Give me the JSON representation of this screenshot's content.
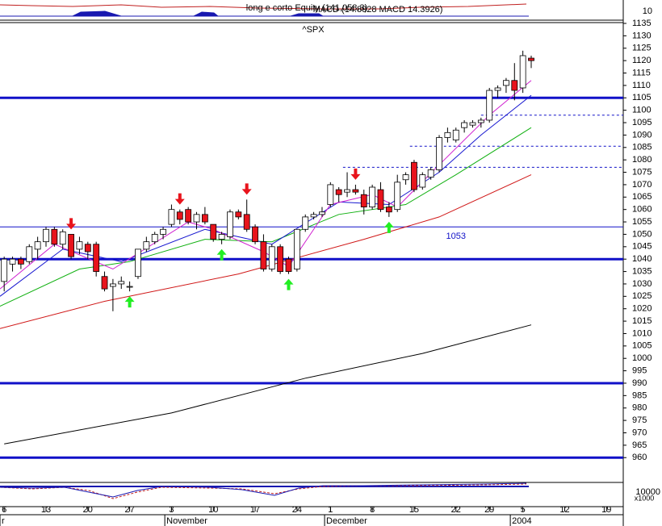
{
  "chart_data": {
    "type": "candlestick",
    "title": "^SPX",
    "upper_panel": {
      "title": "long e corto Equity (141,058.3)",
      "tick": "10"
    },
    "lower_panel": {
      "title": "MACD (14.8928  MACD 14.3926)",
      "tick": "10000",
      "unit": "x1000"
    },
    "x": [
      0,
      1,
      2,
      3,
      4,
      5,
      6,
      7,
      8,
      9,
      10,
      11,
      12,
      13,
      14,
      15,
      16,
      17,
      18,
      19,
      20,
      21,
      22,
      23,
      24,
      25,
      26,
      27,
      28,
      29,
      30,
      31,
      32,
      33,
      34,
      35,
      36,
      37,
      38,
      39,
      40,
      41,
      42,
      43,
      44,
      45,
      46,
      47,
      48,
      49,
      50,
      51,
      52,
      53,
      54,
      55,
      56,
      57,
      58,
      59,
      60,
      61,
      62,
      63
    ],
    "open": [
      1031,
      1038,
      1040,
      1039,
      1044,
      1047,
      1052,
      1046,
      1050,
      1044,
      1046,
      1046,
      1033,
      1029,
      1030,
      1029,
      1033,
      1044,
      1047,
      1050,
      1054,
      1059,
      1060,
      1055,
      1058,
      1054,
      1048,
      1049,
      1059,
      1058,
      1053,
      1047,
      1036,
      1045,
      1040,
      1036,
      1052,
      1057,
      1058,
      1062,
      1068,
      1067,
      1068,
      1066,
      1061,
      1068,
      1061,
      1060,
      1072,
      1079,
      1069,
      1073,
      1076,
      1089,
      1088,
      1093,
      1094,
      1095,
      1096,
      1108,
      1110,
      1112,
      1109,
      1121
    ],
    "high": [
      1041,
      1041,
      1041,
      1046,
      1049,
      1053,
      1053,
      1052,
      1050,
      1049,
      1047,
      1047,
      1035,
      1032,
      1033,
      1031,
      1044,
      1049,
      1051,
      1053,
      1062,
      1060,
      1061,
      1059,
      1061,
      1054,
      1051,
      1060,
      1060,
      1064,
      1054,
      1050,
      1046,
      1046,
      1041,
      1052,
      1058,
      1059,
      1061,
      1071,
      1069,
      1075,
      1070,
      1068,
      1070,
      1071,
      1063,
      1074,
      1075,
      1080,
      1075,
      1077,
      1090,
      1093,
      1093,
      1096,
      1096,
      1097,
      1109,
      1110,
      1113,
      1119,
      1124,
      1122
    ],
    "low": [
      1027,
      1035,
      1036,
      1038,
      1040,
      1045,
      1045,
      1044,
      1040,
      1042,
      1040,
      1033,
      1027,
      1019,
      1028,
      1027,
      1032,
      1043,
      1046,
      1048,
      1053,
      1054,
      1054,
      1052,
      1054,
      1047,
      1046,
      1048,
      1056,
      1051,
      1046,
      1035,
      1035,
      1034,
      1034,
      1035,
      1051,
      1056,
      1057,
      1061,
      1063,
      1065,
      1066,
      1058,
      1060,
      1059,
      1057,
      1059,
      1070,
      1067,
      1068,
      1072,
      1075,
      1087,
      1087,
      1091,
      1093,
      1093,
      1095,
      1105,
      1107,
      1104,
      1107,
      1117
    ],
    "close": [
      1040,
      1040,
      1038,
      1045,
      1047,
      1052,
      1046,
      1051,
      1041,
      1047,
      1043,
      1035,
      1028,
      1030,
      1031,
      1029,
      1044,
      1047,
      1050,
      1052,
      1060,
      1056,
      1055,
      1058,
      1055,
      1048,
      1050,
      1059,
      1057,
      1052,
      1047,
      1036,
      1045,
      1035,
      1035,
      1052,
      1057,
      1058,
      1059,
      1070,
      1066,
      1068,
      1067,
      1061,
      1069,
      1060,
      1059,
      1071,
      1074,
      1068,
      1074,
      1076,
      1089,
      1091,
      1092,
      1095,
      1095,
      1096,
      1108,
      1109,
      1112,
      1108,
      1122,
      1120
    ],
    "up_color": "#ffffff",
    "down_color": "#e8141c",
    "series": [
      {
        "color": "#000000",
        "x": [
          0,
          20,
          36,
          50,
          63
        ],
        "values": [
          965.5,
          978,
          992,
          1002,
          1013.5
        ]
      },
      {
        "color": "#d01818",
        "x": [
          -0.5,
          12,
          28,
          43,
          52,
          63
        ],
        "values": [
          1012,
          1023,
          1034,
          1048,
          1057,
          1074
        ]
      },
      {
        "color": "#10b010",
        "x": [
          -0.5,
          9,
          15,
          24,
          32,
          40,
          48,
          54,
          63
        ],
        "values": [
          1021,
          1036,
          1039,
          1048,
          1047,
          1058,
          1062,
          1074,
          1093
        ]
      },
      {
        "color": "#1818d0",
        "x": [
          -0.5,
          7,
          14,
          24,
          32,
          40,
          46,
          52,
          57,
          63
        ],
        "values": [
          1025,
          1044,
          1039,
          1052,
          1046,
          1063,
          1062,
          1075,
          1090,
          1106
        ]
      },
      {
        "color": "#d020d0",
        "x": [
          -0.5,
          6,
          13,
          22,
          25,
          31,
          34,
          39,
          44,
          47,
          52,
          58,
          63
        ],
        "values": [
          1028,
          1046,
          1036,
          1055,
          1052,
          1043,
          1037,
          1062,
          1066,
          1061,
          1078,
          1098,
          1112
        ]
      }
    ],
    "levels": [
      1105,
      1040,
      990,
      960
    ],
    "level_color": "#1010c8",
    "support": {
      "value": 1053,
      "label": "1053",
      "label_x": 54
    },
    "dashed_levels": [
      {
        "value": 1098,
        "start": 57
      },
      {
        "value": 1085.5,
        "start": 48.5
      },
      {
        "value": 1077,
        "start": 40.5
      }
    ],
    "sell_signals": [
      8,
      21,
      29,
      42
    ],
    "buy_signals": [
      15,
      26,
      34,
      46
    ],
    "xlim": [
      -0.5,
      74
    ],
    "xticks": [
      {
        "value": 0,
        "label": "6"
      },
      {
        "value": 5,
        "label": "13"
      },
      {
        "value": 10,
        "label": "20"
      },
      {
        "value": 15,
        "label": "27"
      },
      {
        "value": 20,
        "label": "3"
      },
      {
        "value": 25,
        "label": "10"
      },
      {
        "value": 30,
        "label": "17"
      },
      {
        "value": 35,
        "label": "24"
      },
      {
        "value": 39,
        "label": "1"
      },
      {
        "value": 44,
        "label": "8"
      },
      {
        "value": 49,
        "label": "15"
      },
      {
        "value": 54,
        "label": "22"
      },
      {
        "value": 58,
        "label": "29"
      },
      {
        "value": 62,
        "label": "5"
      },
      {
        "value": 67,
        "label": "12"
      },
      {
        "value": 72,
        "label": "19"
      }
    ],
    "month_labels": [
      {
        "value": -0.5,
        "label": "r"
      },
      {
        "value": 19.2,
        "label": "November"
      },
      {
        "value": 38.3,
        "label": "December"
      },
      {
        "value": 60.5,
        "label": "2004"
      }
    ],
    "ylim": [
      950,
      1135
    ],
    "yticks": [
      960,
      965,
      970,
      975,
      980,
      985,
      990,
      995,
      1000,
      1005,
      1010,
      1015,
      1020,
      1025,
      1030,
      1035,
      1040,
      1045,
      1050,
      1055,
      1060,
      1065,
      1070,
      1075,
      1080,
      1085,
      1090,
      1095,
      1100,
      1105,
      1110,
      1115,
      1120,
      1125,
      1130,
      1135
    ]
  }
}
